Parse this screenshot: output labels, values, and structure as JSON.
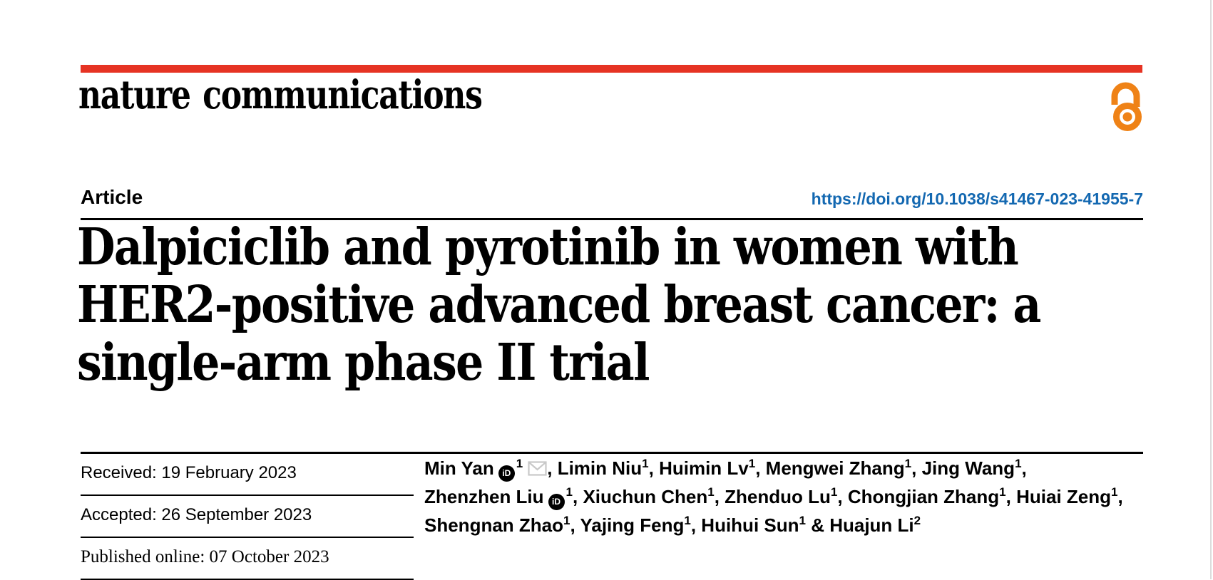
{
  "colors": {
    "accent_red": "#e63323",
    "link_blue": "#1368b1",
    "oa_orange": "#ef8216",
    "envelope_gray": "#c9c9c9",
    "page_edge": "#dcdcdc"
  },
  "masthead": {
    "wordmark": "nature communications",
    "open_access_icon": "open-access-padlock"
  },
  "article": {
    "label": "Article",
    "doi": "https://doi.org/10.1038/s41467-023-41955-7",
    "title_lines": [
      "Dalpiciclib and pyrotinib in women with",
      "HER2-positive advanced breast cancer: a",
      "single-arm phase II trial"
    ]
  },
  "history": {
    "rows": [
      {
        "label": "Received:",
        "value": "19 February 2023"
      },
      {
        "label": "Accepted:",
        "value": "26 September 2023"
      },
      {
        "label": "Published online:",
        "value": "07 October 2023"
      }
    ]
  },
  "authors": {
    "lines": [
      [
        {
          "name": "Min Yan",
          "orcid": true,
          "sup": "1",
          "envelope": true,
          "tail": ", "
        },
        {
          "name": "Limin Niu",
          "sup": "1",
          "tail": ", "
        },
        {
          "name": "Huimin Lv",
          "sup": "1",
          "tail": ", "
        },
        {
          "name": "Mengwei Zhang",
          "sup": "1",
          "tail": ", "
        },
        {
          "name": "Jing Wang",
          "sup": "1",
          "tail": ","
        }
      ],
      [
        {
          "name": "Zhenzhen Liu",
          "orcid": true,
          "sup": "1",
          "tail": ", "
        },
        {
          "name": "Xiuchun Chen",
          "sup": "1",
          "tail": ", "
        },
        {
          "name": "Zhenduo Lu",
          "sup": "1",
          "tail": ", "
        },
        {
          "name": "Chongjian Zhang",
          "sup": "1",
          "tail": ", "
        },
        {
          "name": "Huiai Zeng",
          "sup": "1",
          "tail": ","
        }
      ],
      [
        {
          "name": "Shengnan Zhao",
          "sup": "1",
          "tail": ", "
        },
        {
          "name": "Yajing Feng",
          "sup": "1",
          "tail": ", "
        },
        {
          "name": "Huihui Sun",
          "sup": "1",
          "tail": " & "
        },
        {
          "name": "Huajun Li",
          "sup": "2",
          "tail": ""
        }
      ]
    ]
  }
}
